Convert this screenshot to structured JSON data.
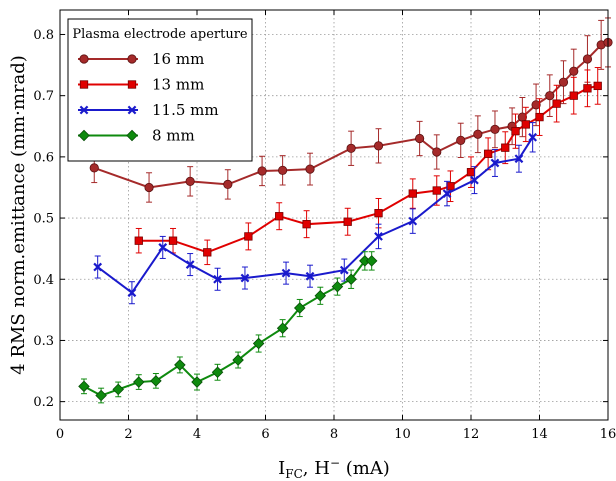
{
  "chart_data": {
    "type": "line",
    "title": "",
    "xlabel_main": "I",
    "xlabel_sub": "FC",
    "xlabel_rest": ", H",
    "xlabel_sup": "−",
    "xlabel_unit": " (mA)",
    "ylabel": "4 RMS norm.emittance (mm·mrad)",
    "xlim": [
      0,
      16
    ],
    "ylim": [
      0.17,
      0.84
    ],
    "x_ticks": [
      0,
      2,
      4,
      6,
      8,
      10,
      12,
      14,
      16
    ],
    "y_ticks": [
      0.2,
      0.3,
      0.4,
      0.5,
      0.6,
      0.7,
      0.8
    ],
    "grid": true,
    "legend_title": "Plasma electrode aperture",
    "legend_position": "upper-left",
    "series": [
      {
        "name": "16 mm",
        "color": "#a52a2a",
        "marker": "circle",
        "x": [
          1.0,
          2.6,
          3.8,
          4.9,
          5.9,
          6.5,
          7.3,
          8.5,
          9.3,
          10.5,
          11.0,
          11.7,
          12.2,
          12.7,
          13.2,
          13.5,
          13.9,
          14.3,
          14.7,
          15.0,
          15.4,
          15.8,
          16.0
        ],
        "y": [
          0.582,
          0.55,
          0.56,
          0.555,
          0.577,
          0.578,
          0.58,
          0.614,
          0.618,
          0.63,
          0.608,
          0.627,
          0.637,
          0.645,
          0.65,
          0.665,
          0.685,
          0.7,
          0.722,
          0.74,
          0.76,
          0.783,
          0.787
        ],
        "err": [
          0.024,
          0.024,
          0.024,
          0.024,
          0.024,
          0.024,
          0.026,
          0.028,
          0.028,
          0.028,
          0.028,
          0.028,
          0.03,
          0.03,
          0.03,
          0.032,
          0.034,
          0.034,
          0.035,
          0.036,
          0.038,
          0.04,
          0.04
        ]
      },
      {
        "name": "13 mm",
        "color": "#e00000",
        "marker": "square",
        "x": [
          2.3,
          3.3,
          4.3,
          5.5,
          6.4,
          7.2,
          8.4,
          9.3,
          10.3,
          11.0,
          11.4,
          12.0,
          12.5,
          13.0,
          13.3,
          13.6,
          14.0,
          14.5,
          15.0,
          15.4,
          15.7
        ],
        "y": [
          0.463,
          0.463,
          0.444,
          0.47,
          0.503,
          0.49,
          0.494,
          0.508,
          0.54,
          0.545,
          0.552,
          0.575,
          0.605,
          0.615,
          0.642,
          0.653,
          0.665,
          0.687,
          0.7,
          0.712,
          0.716
        ],
        "err": [
          0.02,
          0.02,
          0.02,
          0.022,
          0.022,
          0.022,
          0.022,
          0.024,
          0.024,
          0.024,
          0.025,
          0.025,
          0.026,
          0.026,
          0.028,
          0.028,
          0.03,
          0.03,
          0.03,
          0.03,
          0.03
        ]
      },
      {
        "name": "11.5 mm",
        "color": "#1a1acc",
        "marker": "x",
        "x": [
          1.1,
          2.1,
          3.0,
          3.8,
          4.6,
          5.4,
          6.6,
          7.3,
          8.3,
          9.3,
          10.3,
          11.3,
          12.1,
          12.7,
          13.4,
          13.8
        ],
        "y": [
          0.42,
          0.378,
          0.452,
          0.424,
          0.4,
          0.402,
          0.41,
          0.405,
          0.415,
          0.47,
          0.495,
          0.54,
          0.562,
          0.59,
          0.597,
          0.632
        ],
        "err": [
          0.018,
          0.018,
          0.018,
          0.018,
          0.018,
          0.018,
          0.018,
          0.018,
          0.018,
          0.02,
          0.02,
          0.02,
          0.022,
          0.022,
          0.022,
          0.024
        ]
      },
      {
        "name": "8 mm",
        "color": "#0e8a0e",
        "marker": "diamond",
        "x": [
          0.7,
          1.2,
          1.7,
          2.3,
          2.8,
          3.5,
          4.0,
          4.6,
          5.2,
          5.8,
          6.5,
          7.0,
          7.6,
          8.1,
          8.5,
          8.9,
          9.1
        ],
        "y": [
          0.225,
          0.21,
          0.22,
          0.232,
          0.234,
          0.26,
          0.232,
          0.248,
          0.268,
          0.295,
          0.32,
          0.353,
          0.373,
          0.388,
          0.4,
          0.43,
          0.43
        ],
        "err": [
          0.012,
          0.012,
          0.012,
          0.012,
          0.012,
          0.013,
          0.013,
          0.013,
          0.013,
          0.014,
          0.014,
          0.014,
          0.014,
          0.014,
          0.015,
          0.015,
          0.015
        ]
      }
    ]
  }
}
